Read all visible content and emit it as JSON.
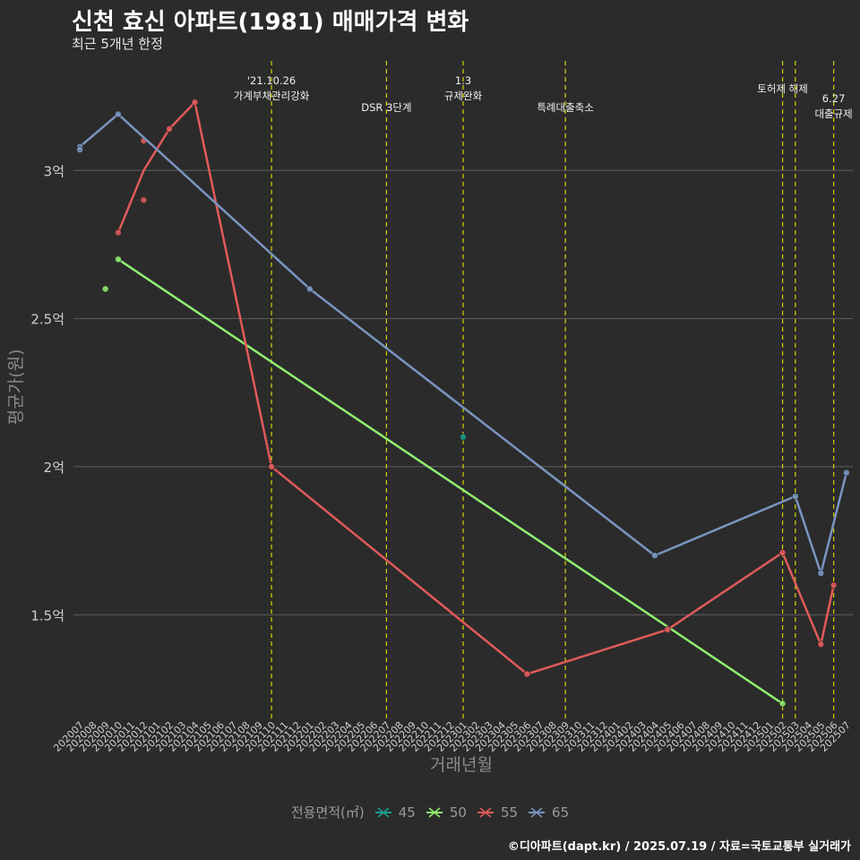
{
  "header": {
    "title": "신천 효신 아파트(1981) 매매가격 변화",
    "subtitle": "최근 5개년 한정"
  },
  "caption": "©디아파트(dapt.kr) / 2025.07.19 / 자료=국토교통부 실거래가",
  "legend": {
    "title": "전용면적(㎡)",
    "items": [
      {
        "label": "45",
        "color": "#1b9e8e"
      },
      {
        "label": "50",
        "color": "#90ee70"
      },
      {
        "label": "55",
        "color": "#e05a5a"
      },
      {
        "label": "65",
        "color": "#7a95c0"
      }
    ]
  },
  "chart_data": {
    "type": "line",
    "xlabel": "거래년월",
    "ylabel": "평균가(원)",
    "ylim": [
      1.15,
      3.4
    ],
    "yticks": [
      {
        "value": 1.5,
        "label": "1.5억"
      },
      {
        "value": 2.0,
        "label": "2억"
      },
      {
        "value": 2.5,
        "label": "2.5억"
      },
      {
        "value": 3.0,
        "label": "3억"
      }
    ],
    "grid": true,
    "legend_position": "bottom",
    "categories": [
      "202007",
      "202008",
      "202009",
      "202010",
      "202011",
      "202012",
      "202101",
      "202102",
      "202103",
      "202104",
      "202105",
      "202106",
      "202107",
      "202108",
      "202109",
      "202110",
      "202111",
      "202112",
      "202201",
      "202202",
      "202203",
      "202204",
      "202205",
      "202206",
      "202207",
      "202208",
      "202209",
      "202210",
      "202211",
      "202212",
      "202301",
      "202302",
      "202303",
      "202304",
      "202305",
      "202306",
      "202307",
      "202308",
      "202309",
      "202310",
      "202311",
      "202312",
      "202401",
      "202402",
      "202403",
      "202404",
      "202405",
      "202406",
      "202407",
      "202408",
      "202409",
      "202410",
      "202411",
      "202412",
      "202501",
      "202502",
      "202503",
      "202504",
      "202505",
      "202506",
      "202507"
    ],
    "annotations": [
      {
        "x": "202110",
        "lines": [
          "'21.10.26",
          "가계부채관리강화"
        ]
      },
      {
        "x": "202207",
        "lines": [
          "DSR 3단계"
        ]
      },
      {
        "x": "202301",
        "lines": [
          "1.3",
          "규제완화"
        ]
      },
      {
        "x": "202309",
        "lines": [
          "특례대출축소"
        ]
      },
      {
        "x": "202502",
        "lines": [
          "토허제 해제"
        ]
      },
      {
        "x": "202503",
        "lines": []
      },
      {
        "x": "202506",
        "lines": [
          "6.27",
          "대출규제"
        ]
      }
    ],
    "series": [
      {
        "name": "45",
        "color": "#1b9e8e",
        "line": [],
        "points": [
          {
            "x": "202301",
            "y": 2.1
          }
        ]
      },
      {
        "name": "50",
        "color": "#90ee70",
        "line": [
          {
            "x": "202010",
            "y": 2.7
          },
          {
            "x": "202502",
            "y": 1.2
          }
        ],
        "points": [
          {
            "x": "202009",
            "y": 2.6
          },
          {
            "x": "202010",
            "y": 2.7
          },
          {
            "x": "202502",
            "y": 1.2
          }
        ]
      },
      {
        "name": "55",
        "color": "#e05a5a",
        "line": [
          {
            "x": "202010",
            "y": 2.79
          },
          {
            "x": "202012",
            "y": 3.0
          },
          {
            "x": "202102",
            "y": 3.14
          },
          {
            "x": "202104",
            "y": 3.23
          },
          {
            "x": "202110",
            "y": 2.0
          },
          {
            "x": "202306",
            "y": 1.3
          },
          {
            "x": "202405",
            "y": 1.45
          },
          {
            "x": "202502",
            "y": 1.71
          },
          {
            "x": "202505",
            "y": 1.4
          },
          {
            "x": "202506",
            "y": 1.6
          }
        ],
        "points": [
          {
            "x": "202010",
            "y": 2.79
          },
          {
            "x": "202012",
            "y": 3.1
          },
          {
            "x": "202012",
            "y": 2.9
          },
          {
            "x": "202102",
            "y": 3.14
          },
          {
            "x": "202104",
            "y": 3.23
          },
          {
            "x": "202110",
            "y": 2.0
          },
          {
            "x": "202306",
            "y": 1.3
          },
          {
            "x": "202405",
            "y": 1.45
          },
          {
            "x": "202502",
            "y": 1.71
          },
          {
            "x": "202505",
            "y": 1.4
          },
          {
            "x": "202506",
            "y": 1.6
          }
        ]
      },
      {
        "name": "65",
        "color": "#7a95c0",
        "line": [
          {
            "x": "202007",
            "y": 3.08
          },
          {
            "x": "202010",
            "y": 3.19
          },
          {
            "x": "202201",
            "y": 2.6
          },
          {
            "x": "202404",
            "y": 1.7
          },
          {
            "x": "202503",
            "y": 1.9
          },
          {
            "x": "202505",
            "y": 1.64
          },
          {
            "x": "202507",
            "y": 1.98
          }
        ],
        "points": [
          {
            "x": "202007",
            "y": 3.08
          },
          {
            "x": "202007",
            "y": 3.07
          },
          {
            "x": "202010",
            "y": 3.19
          },
          {
            "x": "202201",
            "y": 2.6
          },
          {
            "x": "202404",
            "y": 1.7
          },
          {
            "x": "202503",
            "y": 1.9
          },
          {
            "x": "202505",
            "y": 1.64
          },
          {
            "x": "202507",
            "y": 1.98
          }
        ]
      }
    ]
  }
}
